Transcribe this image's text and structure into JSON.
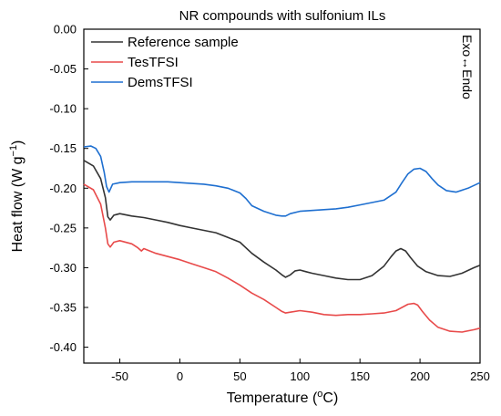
{
  "chart_data": {
    "type": "line",
    "title": "NR compounds with sulfonium ILs",
    "xlabel": "Temperature (°C)",
    "xlabel_main": "Temperature (",
    "xlabel_unit": "o",
    "xlabel_suffix": "C)",
    "ylabel_main": "Heat flow (W g",
    "ylabel_sup": "−1",
    "ylabel_suffix": ")",
    "xlim": [
      -80,
      250
    ],
    "ylim": [
      -0.42,
      0.0
    ],
    "xticks": [
      -50,
      0,
      50,
      100,
      150,
      200,
      250
    ],
    "xtick_labels": [
      "-50",
      "0",
      "50",
      "100",
      "150",
      "200",
      "250"
    ],
    "yticks": [
      0.0,
      -0.05,
      -0.1,
      -0.15,
      -0.2,
      -0.25,
      -0.3,
      -0.35,
      -0.4
    ],
    "ytick_labels": [
      "0.00",
      "-0.05",
      "-0.10",
      "-0.15",
      "-0.20",
      "-0.25",
      "-0.30",
      "-0.35",
      "-0.40"
    ],
    "grid": false,
    "legend_position": "top-left",
    "annotation": "Exo↔Endo",
    "series": [
      {
        "name": "Reference sample",
        "color": "#333333",
        "x": [
          -80,
          -72,
          -66,
          -62,
          -60,
          -58,
          -55,
          -50,
          -40,
          -30,
          -20,
          -10,
          0,
          10,
          20,
          30,
          40,
          50,
          60,
          70,
          80,
          85,
          88,
          92,
          96,
          100,
          105,
          110,
          120,
          130,
          140,
          150,
          160,
          170,
          176,
          180,
          184,
          188,
          192,
          198,
          205,
          215,
          225,
          235,
          245,
          250
        ],
        "y": [
          -0.165,
          -0.172,
          -0.188,
          -0.212,
          -0.236,
          -0.24,
          -0.234,
          -0.232,
          -0.235,
          -0.237,
          -0.24,
          -0.243,
          -0.247,
          -0.25,
          -0.253,
          -0.256,
          -0.262,
          -0.268,
          -0.282,
          -0.293,
          -0.303,
          -0.309,
          -0.312,
          -0.309,
          -0.304,
          -0.303,
          -0.305,
          -0.307,
          -0.31,
          -0.313,
          -0.315,
          -0.315,
          -0.31,
          -0.298,
          -0.286,
          -0.279,
          -0.276,
          -0.279,
          -0.287,
          -0.298,
          -0.305,
          -0.31,
          -0.311,
          -0.307,
          -0.3,
          -0.297
        ]
      },
      {
        "name": "TesTFSI",
        "color": "#e84a4a",
        "x": [
          -80,
          -72,
          -66,
          -62,
          -60,
          -58,
          -55,
          -50,
          -40,
          -35,
          -32,
          -30,
          -20,
          -10,
          0,
          10,
          20,
          30,
          40,
          50,
          60,
          70,
          80,
          85,
          88,
          92,
          100,
          110,
          120,
          130,
          140,
          150,
          160,
          170,
          180,
          185,
          190,
          195,
          198,
          202,
          208,
          215,
          225,
          235,
          245,
          250
        ],
        "y": [
          -0.195,
          -0.202,
          -0.22,
          -0.25,
          -0.27,
          -0.274,
          -0.268,
          -0.266,
          -0.27,
          -0.275,
          -0.279,
          -0.276,
          -0.282,
          -0.286,
          -0.29,
          -0.295,
          -0.3,
          -0.305,
          -0.313,
          -0.322,
          -0.332,
          -0.34,
          -0.35,
          -0.355,
          -0.357,
          -0.356,
          -0.354,
          -0.356,
          -0.359,
          -0.36,
          -0.359,
          -0.359,
          -0.358,
          -0.357,
          -0.354,
          -0.35,
          -0.346,
          -0.345,
          -0.347,
          -0.355,
          -0.366,
          -0.375,
          -0.38,
          -0.381,
          -0.378,
          -0.376
        ]
      },
      {
        "name": "DemsTFSI",
        "color": "#1e6fd0",
        "x": [
          -80,
          -74,
          -70,
          -66,
          -63,
          -61,
          -59,
          -56,
          -50,
          -40,
          -30,
          -20,
          -10,
          0,
          10,
          20,
          30,
          40,
          50,
          55,
          60,
          70,
          80,
          85,
          88,
          92,
          100,
          110,
          120,
          130,
          140,
          150,
          160,
          170,
          180,
          185,
          190,
          195,
          200,
          205,
          210,
          215,
          222,
          230,
          240,
          250
        ],
        "y": [
          -0.148,
          -0.147,
          -0.15,
          -0.16,
          -0.18,
          -0.198,
          -0.205,
          -0.195,
          -0.193,
          -0.192,
          -0.192,
          -0.192,
          -0.192,
          -0.193,
          -0.194,
          -0.195,
          -0.197,
          -0.2,
          -0.206,
          -0.213,
          -0.222,
          -0.229,
          -0.234,
          -0.235,
          -0.235,
          -0.232,
          -0.229,
          -0.228,
          -0.227,
          -0.226,
          -0.224,
          -0.221,
          -0.218,
          -0.215,
          -0.205,
          -0.193,
          -0.182,
          -0.176,
          -0.175,
          -0.179,
          -0.188,
          -0.196,
          -0.203,
          -0.205,
          -0.2,
          -0.193
        ]
      }
    ]
  }
}
